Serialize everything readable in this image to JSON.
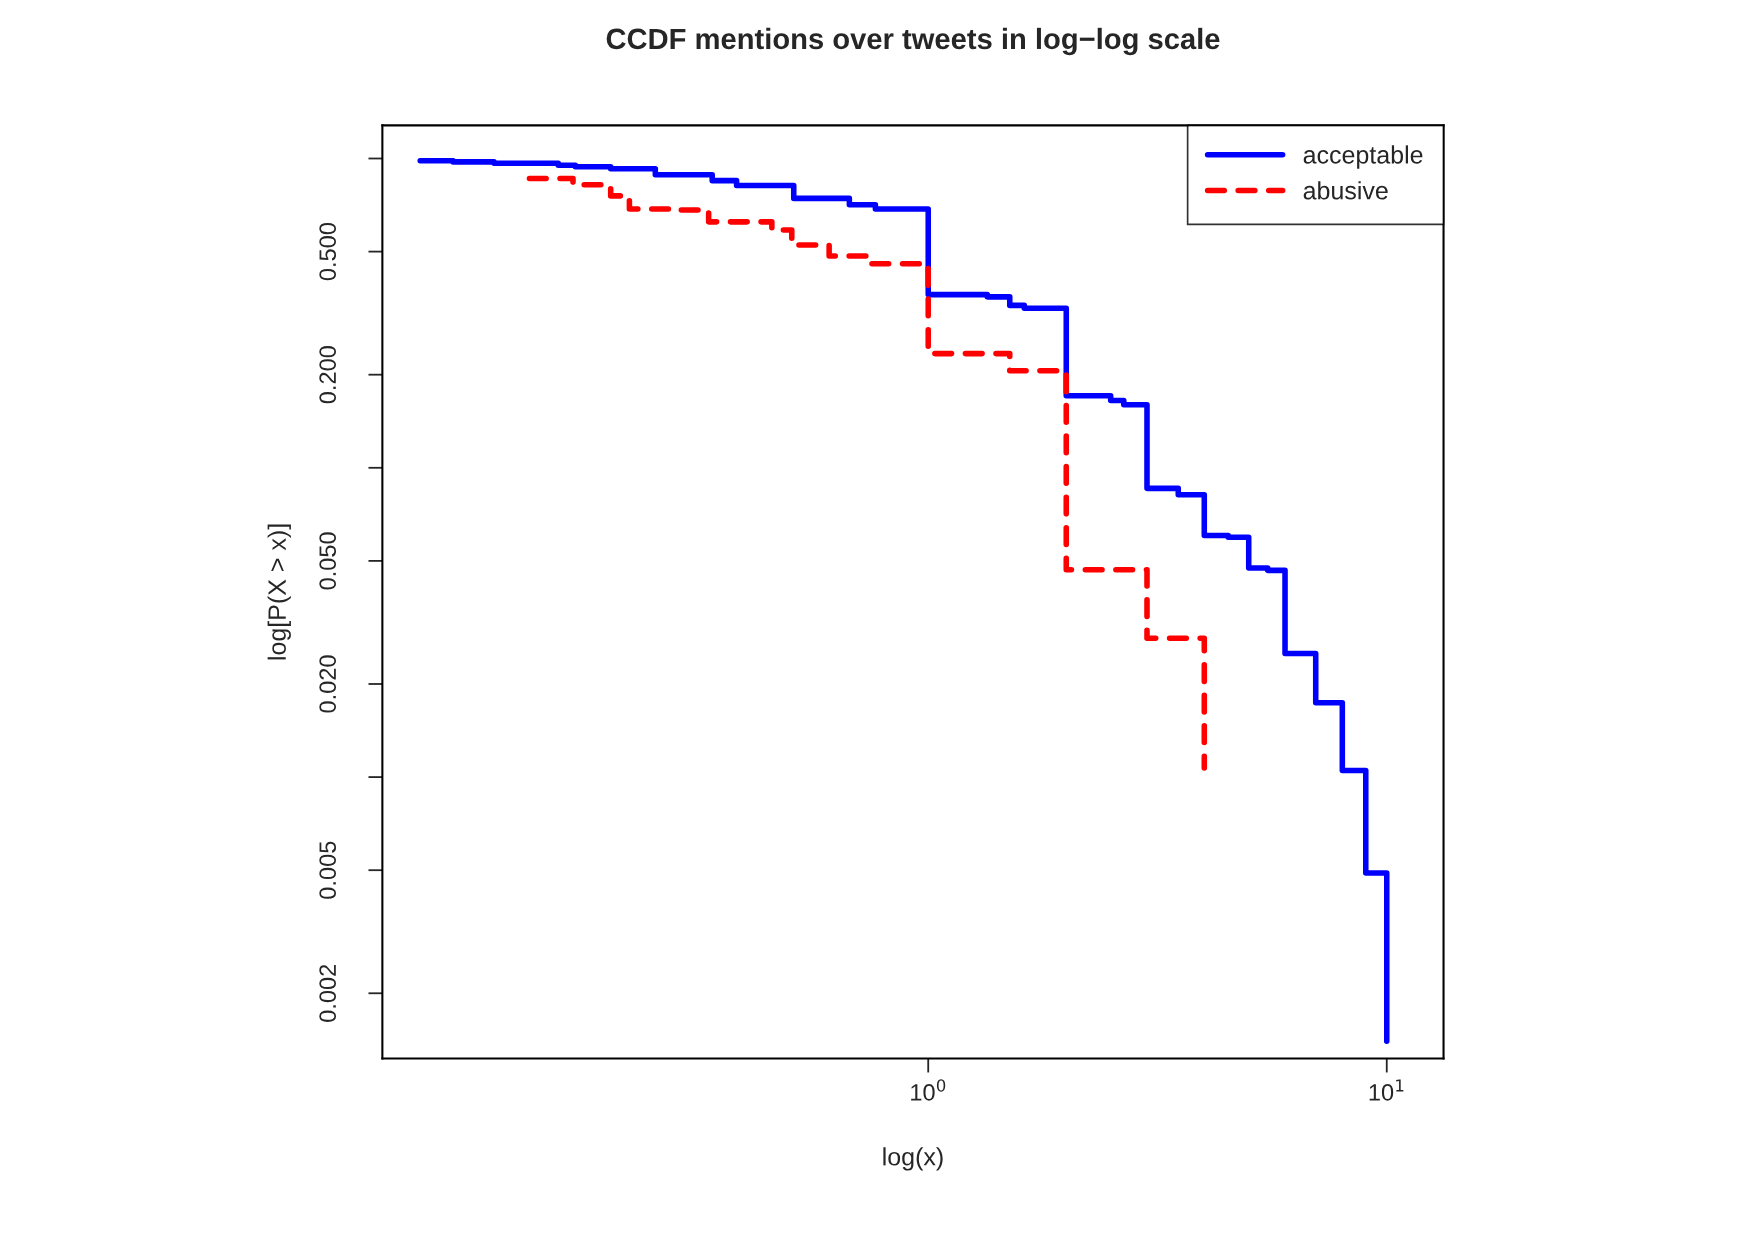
{
  "chart_data": {
    "type": "step",
    "title": "CCDF mentions over tweets in log−log scale",
    "xlabel": "log(x)",
    "ylabel": "log[P(X > x)]",
    "log": "xy",
    "legend": "top right",
    "grid": false,
    "xlim": [
      0.0645,
      13.3
    ],
    "ylim": [
      0.00123,
      1.28
    ],
    "xticks": [
      {
        "value": 1,
        "label": "10$^{0}$"
      },
      {
        "value": 10,
        "label": "10$^{1}$"
      }
    ],
    "yticks": [
      {
        "value": 0.002,
        "label": "0.002"
      },
      {
        "value": 0.005,
        "label": "0.005"
      },
      {
        "value": 0.01,
        "label": null
      },
      {
        "value": 0.02,
        "label": "0.020"
      },
      {
        "value": 0.05,
        "label": "0.050"
      },
      {
        "value": 0.1,
        "label": null
      },
      {
        "value": 0.2,
        "label": "0.200"
      },
      {
        "value": 0.5,
        "label": "0.500"
      },
      {
        "value": 1,
        "label": null
      }
    ],
    "series": [
      {
        "name": "acceptable",
        "color": "#0000ff",
        "line_style": "solid",
        "x": [
          0.078,
          0.092,
          0.113,
          0.156,
          0.17,
          0.203,
          0.254,
          0.338,
          0.382,
          0.509,
          0.673,
          0.767,
          1,
          1.345,
          1.506,
          1.62,
          2,
          2.5,
          2.67,
          3,
          3.51,
          4,
          4.51,
          5,
          5.5,
          6,
          7,
          8,
          9,
          10
        ],
        "values": [
          0.984,
          0.975,
          0.965,
          0.951,
          0.941,
          0.926,
          0.886,
          0.848,
          0.818,
          0.743,
          0.709,
          0.687,
          0.363,
          0.357,
          0.335,
          0.328,
          0.171,
          0.165,
          0.16,
          0.0858,
          0.0818,
          0.0604,
          0.0596,
          0.0474,
          0.0466,
          0.0251,
          0.0174,
          0.0105,
          0.0049,
          0.0014
        ]
      },
      {
        "name": "abusive",
        "color": "#ff0000",
        "line_style": "dashed",
        "x": [
          0.135,
          0.168,
          0.203,
          0.223,
          0.283,
          0.332,
          0.456,
          0.504,
          0.608,
          0.752,
          1,
          1.506,
          2,
          3,
          4
        ],
        "values": [
          0.862,
          0.822,
          0.757,
          0.687,
          0.682,
          0.624,
          0.587,
          0.525,
          0.484,
          0.457,
          0.234,
          0.206,
          0.0468,
          0.0281,
          0.0107
        ]
      }
    ]
  }
}
